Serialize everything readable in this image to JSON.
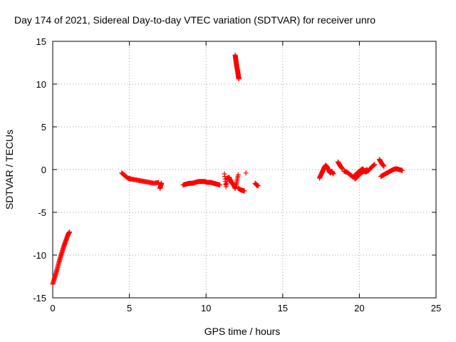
{
  "chart_data": {
    "type": "scatter",
    "title": "Day 174 of 2021, Sidereal Day-to-day VTEC variation (SDTVAR) for receiver unro",
    "xlabel": "GPS time / hours",
    "ylabel": "SDTVAR / TECUs",
    "xlim": [
      0,
      25
    ],
    "ylim": [
      -15,
      15
    ],
    "xticks": [
      0,
      5,
      10,
      15,
      20,
      25
    ],
    "yticks": [
      -15,
      -10,
      -5,
      0,
      5,
      10,
      15
    ],
    "grid": true,
    "marker": "plus",
    "color": "#ff0000",
    "segments": [
      {
        "x": [
          0.0,
          0.1,
          0.2,
          0.3,
          0.4,
          0.5,
          0.6,
          0.7,
          0.8,
          0.9,
          1.0,
          1.1
        ],
        "y": [
          -13.4,
          -12.8,
          -12.2,
          -11.6,
          -10.9,
          -10.3,
          -9.7,
          -9.1,
          -8.6,
          -8.1,
          -7.6,
          -7.3
        ]
      },
      {
        "x": [
          4.5,
          4.7,
          4.9,
          5.1,
          5.4,
          5.7,
          6.0,
          6.3,
          6.6,
          6.9
        ],
        "y": [
          -0.4,
          -0.7,
          -1.0,
          -1.1,
          -1.2,
          -1.3,
          -1.4,
          -1.5,
          -1.6,
          -1.5
        ]
      },
      {
        "x": [
          7.0,
          7.05,
          7.1
        ],
        "y": [
          -2.2,
          -1.8,
          -1.6
        ]
      },
      {
        "x": [
          8.5,
          8.7,
          8.9,
          9.1,
          9.3,
          9.5,
          9.7,
          9.9,
          10.1,
          10.3,
          10.5,
          10.7,
          10.9
        ],
        "y": [
          -1.8,
          -1.7,
          -1.6,
          -1.6,
          -1.5,
          -1.4,
          -1.4,
          -1.4,
          -1.5,
          -1.5,
          -1.6,
          -1.7,
          -1.8
        ]
      },
      {
        "x": [
          11.2,
          11.3,
          11.4,
          11.5,
          11.6,
          11.7,
          11.8,
          11.9,
          12.0,
          12.1
        ],
        "y": [
          -0.5,
          -2.0,
          -1.0,
          -0.9,
          -1.3,
          -1.6,
          -1.8,
          -2.2,
          -1.5,
          -0.6
        ]
      },
      {
        "x": [
          12.1,
          12.3,
          12.5
        ],
        "y": [
          -2.2,
          -2.4,
          -2.5
        ]
      },
      {
        "x": [
          12.6
        ],
        "y": [
          -0.4
        ]
      },
      {
        "x": [
          13.2,
          13.3,
          13.4
        ],
        "y": [
          -1.6,
          -1.8,
          -1.9
        ]
      },
      {
        "x": [
          11.9,
          11.93,
          11.96,
          11.99,
          12.02,
          12.05,
          12.08,
          12.1,
          12.12,
          12.14
        ],
        "y": [
          13.4,
          13.0,
          12.6,
          12.2,
          11.9,
          11.6,
          11.3,
          11.0,
          10.8,
          10.6
        ]
      },
      {
        "x": [
          17.4,
          17.5,
          17.6,
          17.7,
          17.8,
          17.9,
          18.0,
          18.1,
          18.2,
          18.3
        ],
        "y": [
          -1.0,
          -0.6,
          -0.2,
          0.2,
          0.5,
          0.3,
          -0.1,
          -0.4,
          -0.2,
          -0.5
        ]
      },
      {
        "x": [
          18.6,
          18.7,
          18.8,
          18.9
        ],
        "y": [
          0.9,
          0.6,
          0.3,
          0.1
        ]
      },
      {
        "x": [
          19.0,
          19.2,
          19.4,
          19.6,
          19.8,
          20.0,
          20.2,
          20.4,
          20.6,
          20.8,
          21.0
        ],
        "y": [
          -0.2,
          -0.3,
          -0.6,
          -0.9,
          -0.5,
          -0.2,
          0.1,
          -0.3,
          -0.1,
          0.3,
          0.6
        ]
      },
      {
        "x": [
          19.7,
          19.9,
          20.1,
          20.3,
          20.5
        ],
        "y": [
          -1.1,
          -0.8,
          -0.4,
          -0.2,
          0.0
        ]
      },
      {
        "x": [
          21.3,
          21.4,
          21.5,
          21.6
        ],
        "y": [
          1.2,
          0.9,
          0.6,
          0.4
        ]
      },
      {
        "x": [
          21.4,
          21.6,
          21.8,
          22.0,
          22.2,
          22.4,
          22.6,
          22.8
        ],
        "y": [
          -0.8,
          -0.6,
          -0.4,
          -0.2,
          0.0,
          0.1,
          0.0,
          -0.1
        ]
      }
    ]
  }
}
